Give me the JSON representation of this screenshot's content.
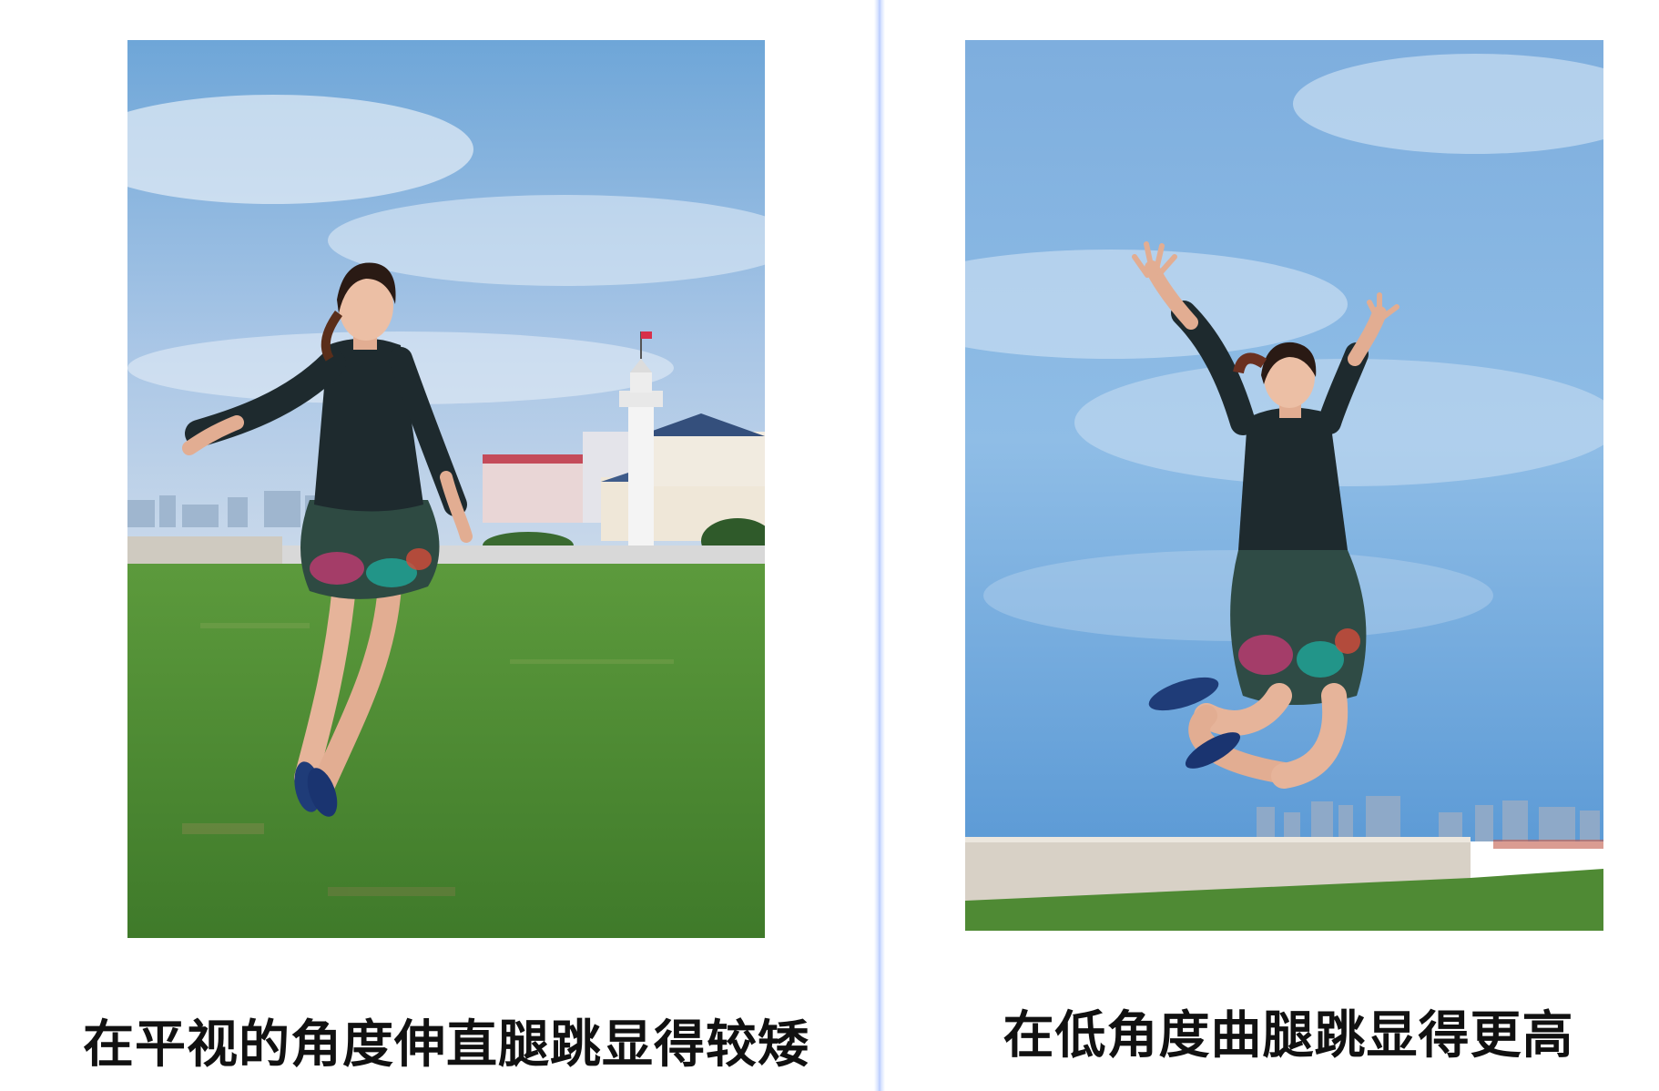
{
  "left_panel": {
    "caption": "在平视的角度伸直腿跳显得较矮"
  },
  "right_panel": {
    "caption": "在低角度曲腿跳显得更高"
  },
  "colors": {
    "sky_top": "#5b9fd8",
    "sky_bottom": "#b8cfe6",
    "grass": "#4f8a34",
    "cardigan": "#1e2a2e",
    "skirt": "#2e4a42",
    "shoes": "#1f3c78",
    "divider": "#b9ccff"
  }
}
